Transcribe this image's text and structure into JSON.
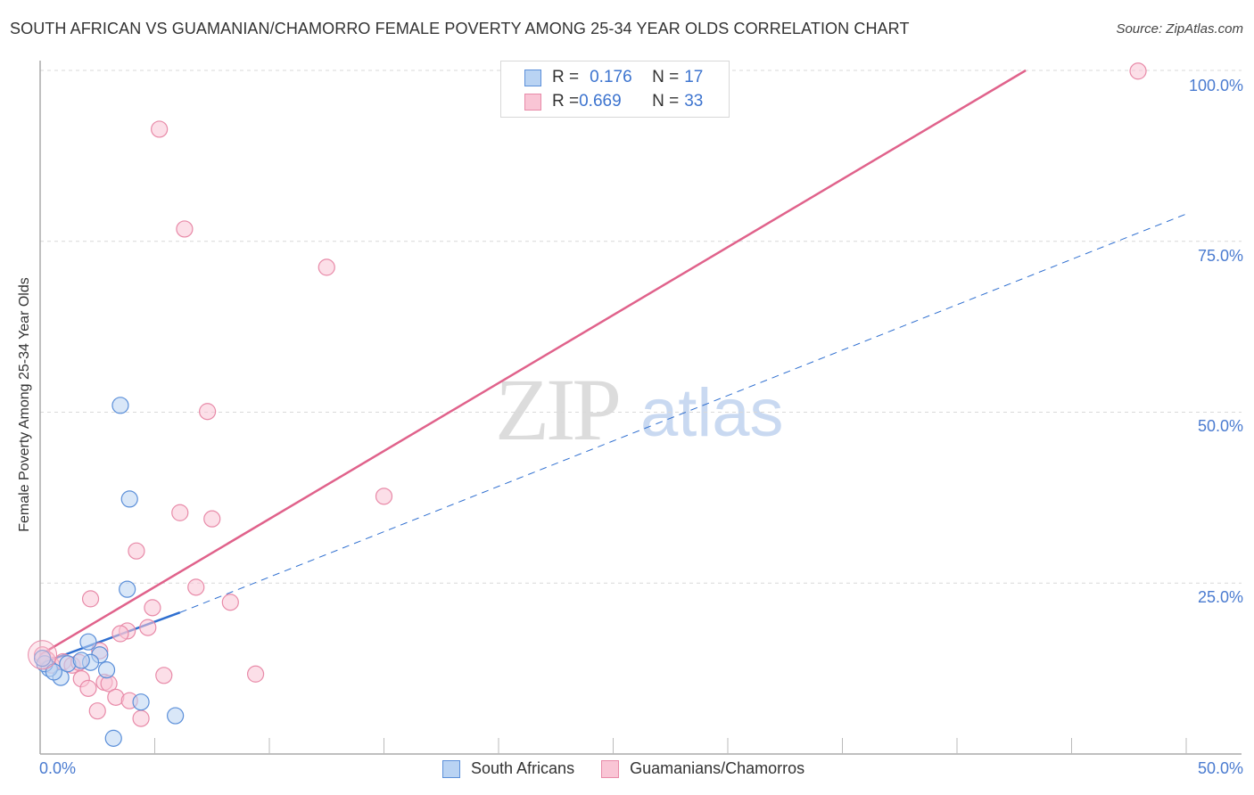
{
  "header": {
    "title": "SOUTH AFRICAN VS GUAMANIAN/CHAMORRO FEMALE POVERTY AMONG 25-34 YEAR OLDS CORRELATION CHART",
    "source": "Source: ZipAtlas.com"
  },
  "watermark": {
    "zip": "ZIP",
    "atlas": "atlas"
  },
  "legend_box": {
    "rows": [
      {
        "r_label": "R = ",
        "r_value": "0.176",
        "n_label": "N = ",
        "n_value": "17"
      },
      {
        "r_label": "R = ",
        "r_value": "0.669",
        "n_label": "N = ",
        "n_value": "33"
      }
    ]
  },
  "axes": {
    "ylabel": "Female Poverty Among 25-34 Year Olds",
    "yticks": [
      "100.0%",
      "75.0%",
      "50.0%",
      "25.0%"
    ],
    "xticks": [
      "0.0%",
      "50.0%"
    ]
  },
  "bottom_legend": [
    "South Africans",
    "Guamanians/Chamorros"
  ],
  "colors": {
    "south_africans_fill": "#b9d3f3",
    "south_africans_stroke": "#5b8fd9",
    "south_africans_line": "#2f6fd0",
    "guamanians_fill": "#f9c5d5",
    "guamanians_stroke": "#e88aa8",
    "guamanians_line": "#e0628b",
    "tick_text": "#4a7bd0"
  },
  "chart_data": {
    "type": "scatter",
    "title": "SOUTH AFRICAN VS GUAMANIAN/CHAMORRO FEMALE POVERTY AMONG 25-34 YEAR OLDS CORRELATION CHART",
    "xlabel": "",
    "ylabel": "Female Poverty Among 25-34 Year Olds",
    "xlim": [
      0,
      50
    ],
    "ylim": [
      0,
      100
    ],
    "x_unit": "%",
    "y_unit": "%",
    "grid": true,
    "legend_position": "bottom",
    "series": [
      {
        "name": "South Africans",
        "R": 0.176,
        "N": 17,
        "points": [
          [
            3.5,
            51.0
          ],
          [
            3.9,
            37.3
          ],
          [
            3.8,
            24.1
          ],
          [
            2.1,
            16.4
          ],
          [
            2.6,
            14.5
          ],
          [
            2.2,
            13.4
          ],
          [
            2.9,
            12.3
          ],
          [
            0.9,
            11.2
          ],
          [
            1.2,
            13.2
          ],
          [
            1.8,
            13.7
          ],
          [
            0.4,
            12.5
          ],
          [
            0.2,
            13.2
          ],
          [
            0.1,
            14.0
          ],
          [
            4.4,
            7.6
          ],
          [
            5.9,
            5.6
          ],
          [
            3.2,
            2.3
          ],
          [
            0.6,
            12.0
          ]
        ],
        "trend": {
          "x": [
            0,
            6.1,
            50
          ],
          "y": [
            13.2,
            20.7,
            79.0
          ],
          "solid_until": 6.1
        }
      },
      {
        "name": "Guamanians/Chamorros",
        "R": 0.669,
        "N": 33,
        "points": [
          [
            47.9,
            99.9
          ],
          [
            5.2,
            91.4
          ],
          [
            6.3,
            76.8
          ],
          [
            12.5,
            71.2
          ],
          [
            7.3,
            50.1
          ],
          [
            15.0,
            37.7
          ],
          [
            6.1,
            35.3
          ],
          [
            7.5,
            34.4
          ],
          [
            4.2,
            29.7
          ],
          [
            6.8,
            24.4
          ],
          [
            2.2,
            22.7
          ],
          [
            8.3,
            22.2
          ],
          [
            4.9,
            21.4
          ],
          [
            4.7,
            18.5
          ],
          [
            3.8,
            18.0
          ],
          [
            3.5,
            17.6
          ],
          [
            2.6,
            15.1
          ],
          [
            5.4,
            11.5
          ],
          [
            9.4,
            11.7
          ],
          [
            1.8,
            11.0
          ],
          [
            2.1,
            9.6
          ],
          [
            2.8,
            10.5
          ],
          [
            3.0,
            10.3
          ],
          [
            2.5,
            6.3
          ],
          [
            3.3,
            8.3
          ],
          [
            3.9,
            7.8
          ],
          [
            4.4,
            5.2
          ],
          [
            0.1,
            14.5
          ],
          [
            0.5,
            13.0
          ],
          [
            1.0,
            13.5
          ],
          [
            1.4,
            13.0
          ],
          [
            1.7,
            13.4
          ],
          [
            0.3,
            13.8
          ]
        ],
        "trend": {
          "x": [
            0,
            43.0
          ],
          "y": [
            14.5,
            100.0
          ]
        }
      }
    ]
  }
}
